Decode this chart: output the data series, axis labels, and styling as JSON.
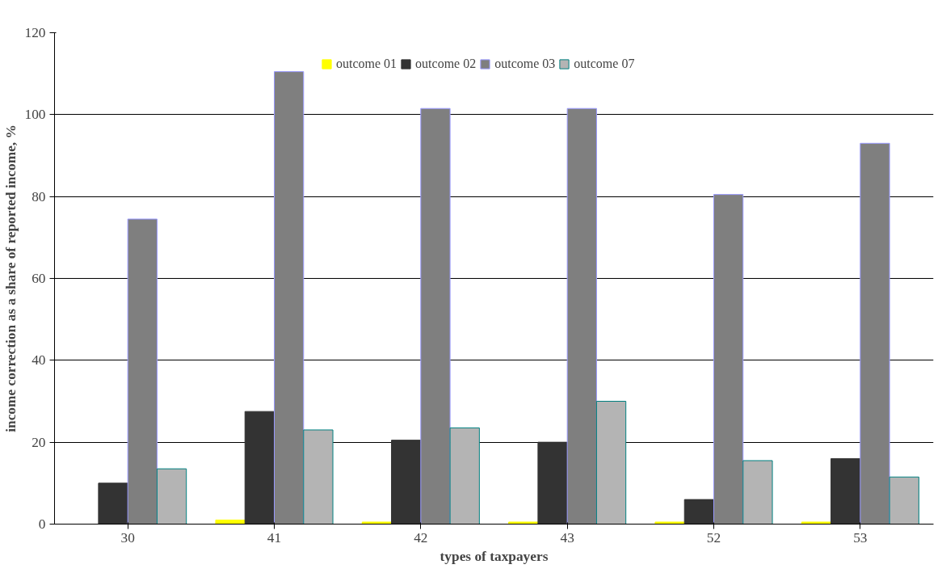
{
  "chart_data": {
    "type": "bar",
    "xlabel": "types of taxpayers",
    "ylabel": "income correction as a share of reported income, %",
    "categories": [
      "30",
      "41",
      "42",
      "43",
      "52",
      "53"
    ],
    "series": [
      {
        "name": "outcome 01",
        "color": "#ffff00",
        "values": [
          0,
          1,
          0.5,
          0.5,
          0.5,
          0.5
        ]
      },
      {
        "name": "outcome 02",
        "color": "#333333",
        "values": [
          10,
          27.5,
          20.5,
          20,
          6,
          16
        ]
      },
      {
        "name": "outcome 03",
        "color": "#7f7f7f",
        "values": [
          74.5,
          110.5,
          101.5,
          101.5,
          80.5,
          93
        ]
      },
      {
        "name": "outcome 07",
        "color": "#b4b4b4",
        "values": [
          13.5,
          23,
          23.5,
          30,
          15.5,
          11.5
        ]
      }
    ],
    "ylim": [
      0,
      120
    ],
    "yticks": [
      0,
      20,
      40,
      60,
      80,
      100,
      120
    ],
    "grid": "y",
    "legend": "top"
  }
}
